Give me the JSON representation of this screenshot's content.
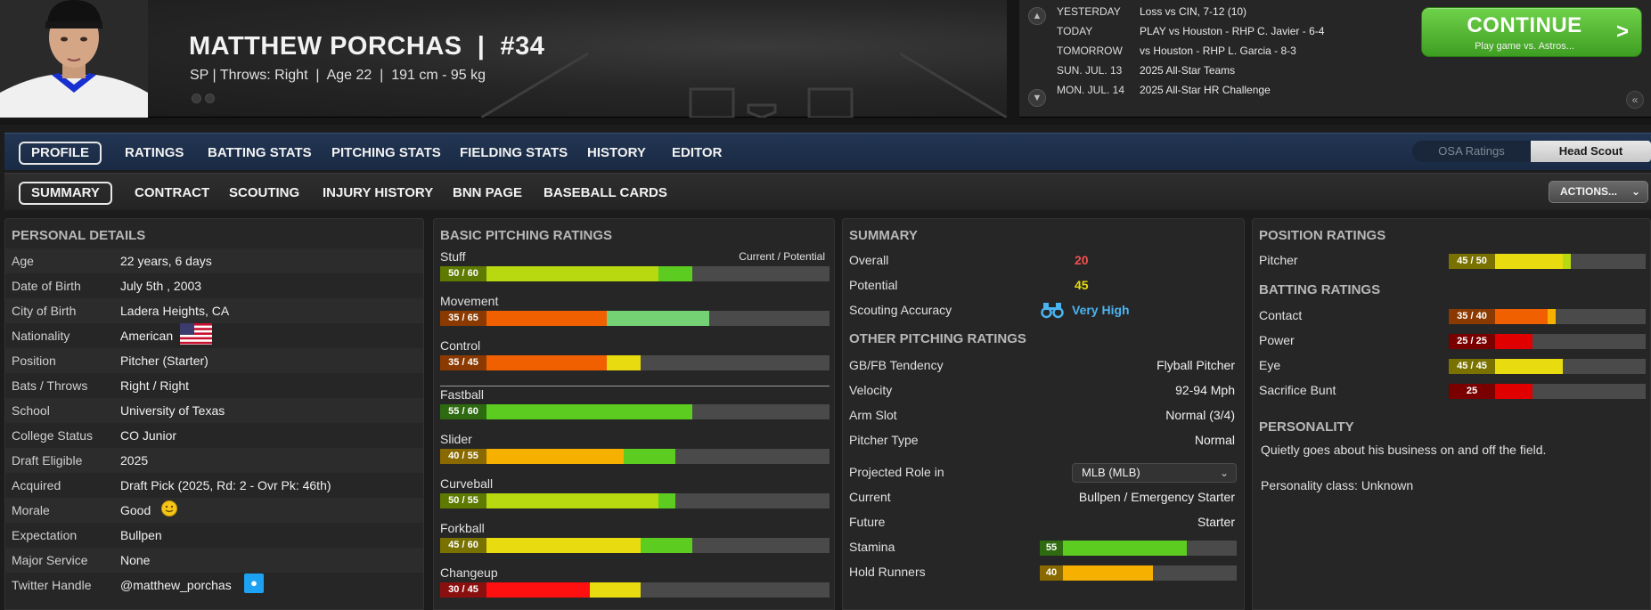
{
  "header": {
    "player_name": "MATTHEW PORCHAS",
    "player_number": "#34",
    "player_info": "SP | Throws: Right  |  Age 22  |  191 cm - 95 kg"
  },
  "schedule": [
    {
      "day": "YESTERDAY",
      "event": "Loss vs CIN, 7-12 (10)"
    },
    {
      "day": "TODAY",
      "event": "PLAY vs Houston - RHP C. Javier - 6-4"
    },
    {
      "day": "TOMORROW",
      "event": "vs Houston - RHP L. Garcia - 8-3"
    },
    {
      "day": "SUN. JUL. 13",
      "event": "2025 All-Star Teams"
    },
    {
      "day": "MON. JUL. 14",
      "event": "2025 All-Star HR Challenge"
    }
  ],
  "continue_button": {
    "label": "CONTINUE",
    "sub": "Play game vs. Astros..."
  },
  "nav_tabs": [
    "PROFILE",
    "RATINGS",
    "BATTING STATS",
    "PITCHING STATS",
    "FIELDING STATS",
    "HISTORY",
    "EDITOR"
  ],
  "scout_toggle": {
    "osa": "OSA Ratings",
    "head": "Head Scout"
  },
  "sub_tabs": [
    "SUMMARY",
    "CONTRACT",
    "SCOUTING",
    "INJURY HISTORY",
    "BNN PAGE",
    "BASEBALL CARDS"
  ],
  "actions_label": "ACTIONS...",
  "personal": {
    "title": "PERSONAL DETAILS",
    "rows": [
      {
        "label": "Age",
        "value": "22 years, 6 days"
      },
      {
        "label": "Date of Birth",
        "value": "July 5th , 2003"
      },
      {
        "label": "City of Birth",
        "value": "Ladera Heights, CA"
      },
      {
        "label": "Nationality",
        "value": "American"
      },
      {
        "label": "Position",
        "value": "Pitcher (Starter)"
      },
      {
        "label": "Bats / Throws",
        "value": "Right / Right"
      },
      {
        "label": "School",
        "value": "University of Texas"
      },
      {
        "label": "College Status",
        "value": "CO Junior"
      },
      {
        "label": "Draft Eligible",
        "value": "2025"
      },
      {
        "label": "Acquired",
        "value": "Draft Pick (2025, Rd: 2 - Ovr Pk: 46th)"
      },
      {
        "label": "Morale",
        "value": "Good"
      },
      {
        "label": "Expectation",
        "value": "Bullpen"
      },
      {
        "label": "Major Service",
        "value": "None"
      },
      {
        "label": "Twitter Handle",
        "value": "@matthew_porchas"
      }
    ]
  },
  "pitching": {
    "title": "BASIC PITCHING RATINGS",
    "legend": "Current / Potential",
    "ratings": [
      {
        "name": "Stuff",
        "badge": "50 / 60",
        "current": 50,
        "potential": 60
      },
      {
        "name": "Movement",
        "badge": "35 / 65",
        "current": 35,
        "potential": 65
      },
      {
        "name": "Control",
        "badge": "35 / 45",
        "current": 35,
        "potential": 45
      },
      {
        "name": "Fastball",
        "badge": "55 / 60",
        "current": 55,
        "potential": 60
      },
      {
        "name": "Slider",
        "badge": "40 / 55",
        "current": 40,
        "potential": 55
      },
      {
        "name": "Curveball",
        "badge": "50 / 55",
        "current": 50,
        "potential": 55
      },
      {
        "name": "Forkball",
        "badge": "45 / 60",
        "current": 45,
        "potential": 60
      },
      {
        "name": "Changeup",
        "badge": "30 / 45",
        "current": 30,
        "potential": 45
      }
    ]
  },
  "summary": {
    "title": "SUMMARY",
    "overall_label": "Overall",
    "overall": "20",
    "potential_label": "Potential",
    "potential": "45",
    "accuracy_label": "Scouting Accuracy",
    "accuracy": "Very High",
    "other_title": "OTHER PITCHING RATINGS",
    "other": [
      {
        "label": "GB/FB Tendency",
        "value": "Flyball Pitcher"
      },
      {
        "label": "Velocity",
        "value": "92-94 Mph"
      },
      {
        "label": "Arm Slot",
        "value": "Normal (3/4)"
      },
      {
        "label": "Pitcher Type",
        "value": "Normal"
      }
    ],
    "role_label": "Projected Role in",
    "role_select": "MLB (MLB)",
    "current_label": "Current",
    "current": "Bullpen / Emergency Starter",
    "future_label": "Future",
    "future": "Starter",
    "stamina_label": "Stamina",
    "stamina": 55,
    "hold_label": "Hold Runners",
    "hold": 40
  },
  "position": {
    "title": "POSITION RATINGS",
    "pitcher": {
      "name": "Pitcher",
      "badge": "45 / 50",
      "current": 45,
      "potential": 50
    },
    "batting_title": "BATTING RATINGS",
    "batting": [
      {
        "name": "Contact",
        "badge": "35 / 40",
        "current": 35,
        "potential": 40
      },
      {
        "name": "Power",
        "badge": "25 / 25",
        "current": 25,
        "potential": 25
      },
      {
        "name": "Eye",
        "badge": "45 / 45",
        "current": 45,
        "potential": 45
      },
      {
        "name": "Sacrifice Bunt",
        "badge": "25",
        "current": 25,
        "potential": 25
      }
    ],
    "personality_title": "PERSONALITY",
    "personality_text": "Quietly goes about his business on and off the field.",
    "personality_class": "Personality class: Unknown"
  },
  "colors": {
    "r20": "#e00000",
    "r25": "#e00000",
    "r30": "#ff1010",
    "r35": "#f06000",
    "r40": "#f5b000",
    "r45": "#e8dc10",
    "r50": "#b8d810",
    "r55": "#5ccc20",
    "r60": "#5ccc20",
    "r65": "#74d274"
  }
}
